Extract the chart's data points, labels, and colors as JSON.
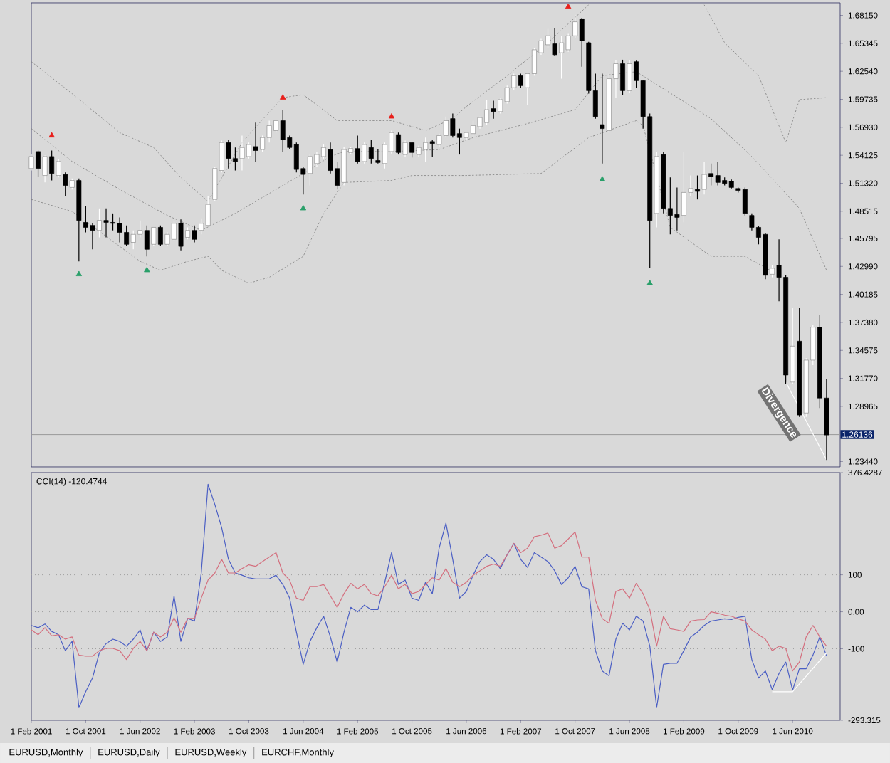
{
  "chart_data": [
    {
      "type": "candlestick",
      "x": [
        "2001-02",
        "2001-03",
        "2001-04",
        "2001-05",
        "2001-06",
        "2001-07",
        "2001-08",
        "2001-09",
        "2001-10",
        "2001-11",
        "2001-12",
        "2002-01",
        "2002-02",
        "2002-03",
        "2002-04",
        "2002-05",
        "2002-06",
        "2002-07",
        "2002-08",
        "2002-09",
        "2002-10",
        "2002-11",
        "2002-12",
        "2003-01",
        "2003-02",
        "2003-03",
        "2003-04",
        "2003-05",
        "2003-06",
        "2003-07",
        "2003-08",
        "2003-09",
        "2003-10",
        "2003-11",
        "2003-12",
        "2004-01",
        "2004-02",
        "2004-03",
        "2004-04",
        "2004-05",
        "2004-06",
        "2004-07",
        "2004-08",
        "2004-09",
        "2004-10",
        "2004-11",
        "2004-12",
        "2005-01",
        "2005-02",
        "2005-03",
        "2005-04",
        "2005-05",
        "2005-06",
        "2005-07",
        "2005-08",
        "2005-09",
        "2005-10",
        "2005-11",
        "2005-12",
        "2006-01",
        "2006-02",
        "2006-03",
        "2006-04",
        "2006-05",
        "2006-06",
        "2006-07",
        "2006-08",
        "2006-09",
        "2006-10",
        "2006-11",
        "2006-12",
        "2007-01",
        "2007-02",
        "2007-03",
        "2007-04",
        "2007-05",
        "2007-06",
        "2007-07",
        "2007-08",
        "2007-09",
        "2007-10",
        "2007-11",
        "2007-12",
        "2008-01",
        "2008-02",
        "2008-03",
        "2008-04",
        "2008-05",
        "2008-06",
        "2008-07",
        "2008-08",
        "2008-09",
        "2008-10",
        "2008-11",
        "2008-12",
        "2009-01",
        "2009-02",
        "2009-03",
        "2009-04",
        "2009-05",
        "2009-06",
        "2009-07",
        "2009-08",
        "2009-09",
        "2009-10",
        "2009-11",
        "2009-12",
        "2010-01",
        "2010-02",
        "2010-03",
        "2010-04",
        "2010-05",
        "2010-06",
        "2010-07",
        "2010-08",
        "2010-09",
        "2010-10",
        "2010-11"
      ],
      "ohlc": [
        [
          1.528,
          1.542,
          1.526,
          1.54
        ],
        [
          1.545,
          1.546,
          1.52,
          1.528
        ],
        [
          1.521,
          1.541,
          1.514,
          1.54
        ],
        [
          1.54,
          1.546,
          1.516,
          1.523
        ],
        [
          1.521,
          1.537,
          1.519,
          1.535
        ],
        [
          1.522,
          1.524,
          1.5,
          1.511
        ],
        [
          1.509,
          1.518,
          1.507,
          1.516
        ],
        [
          1.516,
          1.518,
          1.435,
          1.476
        ],
        [
          1.474,
          1.49,
          1.464,
          1.469
        ],
        [
          1.471,
          1.473,
          1.447,
          1.466
        ],
        [
          1.466,
          1.488,
          1.459,
          1.476
        ],
        [
          1.476,
          1.488,
          1.459,
          1.474
        ],
        [
          1.474,
          1.483,
          1.466,
          1.473
        ],
        [
          1.473,
          1.479,
          1.454,
          1.464
        ],
        [
          1.464,
          1.471,
          1.45,
          1.452
        ],
        [
          1.454,
          1.466,
          1.447,
          1.462
        ],
        [
          1.462,
          1.476,
          1.459,
          1.466
        ],
        [
          1.466,
          1.471,
          1.44,
          1.447
        ],
        [
          1.452,
          1.469,
          1.45,
          1.469
        ],
        [
          1.469,
          1.471,
          1.45,
          1.452
        ],
        [
          1.452,
          1.464,
          1.45,
          1.462
        ],
        [
          1.457,
          1.476,
          1.455,
          1.473
        ],
        [
          1.473,
          1.477,
          1.446,
          1.45
        ],
        [
          1.459,
          1.469,
          1.457,
          1.466
        ],
        [
          1.466,
          1.471,
          1.454,
          1.457
        ],
        [
          1.466,
          1.478,
          1.462,
          1.473
        ],
        [
          1.471,
          1.5,
          1.47,
          1.492
        ],
        [
          1.497,
          1.53,
          1.495,
          1.528
        ],
        [
          1.526,
          1.556,
          1.524,
          1.554
        ],
        [
          1.554,
          1.557,
          1.528,
          1.538
        ],
        [
          1.538,
          1.549,
          1.526,
          1.535
        ],
        [
          1.538,
          1.561,
          1.526,
          1.549
        ],
        [
          1.54,
          1.554,
          1.538,
          1.552
        ],
        [
          1.55,
          1.574,
          1.535,
          1.546
        ],
        [
          1.547,
          1.561,
          1.545,
          1.559
        ],
        [
          1.559,
          1.576,
          1.554,
          1.571
        ],
        [
          1.566,
          1.576,
          1.564,
          1.576
        ],
        [
          1.576,
          1.587,
          1.545,
          1.557
        ],
        [
          1.559,
          1.561,
          1.547,
          1.549
        ],
        [
          1.552,
          1.554,
          1.524,
          1.527
        ],
        [
          1.528,
          1.53,
          1.502,
          1.522
        ],
        [
          1.523,
          1.542,
          1.511,
          1.54
        ],
        [
          1.533,
          1.545,
          1.53,
          1.542
        ],
        [
          1.54,
          1.552,
          1.538,
          1.549
        ],
        [
          1.547,
          1.554,
          1.523,
          1.526
        ],
        [
          1.528,
          1.535,
          1.507,
          1.511
        ],
        [
          1.514,
          1.55,
          1.511,
          1.547
        ],
        [
          1.544,
          1.55,
          1.542,
          1.548
        ],
        [
          1.548,
          1.561,
          1.533,
          1.535
        ],
        [
          1.535,
          1.554,
          1.533,
          1.552
        ],
        [
          1.549,
          1.557,
          1.533,
          1.538
        ],
        [
          1.536,
          1.547,
          1.533,
          1.534
        ],
        [
          1.533,
          1.554,
          1.528,
          1.552
        ],
        [
          1.545,
          1.566,
          1.543,
          1.564
        ],
        [
          1.562,
          1.564,
          1.542,
          1.544
        ],
        [
          1.542,
          1.556,
          1.54,
          1.554
        ],
        [
          1.554,
          1.555,
          1.539,
          1.544
        ],
        [
          1.542,
          1.551,
          1.54,
          1.549
        ],
        [
          1.547,
          1.559,
          1.535,
          1.554
        ],
        [
          1.555,
          1.557,
          1.54,
          1.553
        ],
        [
          1.552,
          1.563,
          1.55,
          1.561
        ],
        [
          1.561,
          1.58,
          1.559,
          1.576
        ],
        [
          1.578,
          1.583,
          1.559,
          1.561
        ],
        [
          1.563,
          1.568,
          1.542,
          1.559
        ],
        [
          1.559,
          1.564,
          1.557,
          1.564
        ],
        [
          1.563,
          1.576,
          1.559,
          1.571
        ],
        [
          1.57,
          1.58,
          1.568,
          1.579
        ],
        [
          1.574,
          1.597,
          1.572,
          1.587
        ],
        [
          1.588,
          1.596,
          1.578,
          1.585
        ],
        [
          1.585,
          1.598,
          1.583,
          1.597
        ],
        [
          1.595,
          1.611,
          1.593,
          1.609
        ],
        [
          1.609,
          1.623,
          1.607,
          1.621
        ],
        [
          1.621,
          1.623,
          1.609,
          1.611
        ],
        [
          1.609,
          1.624,
          1.592,
          1.623
        ],
        [
          1.623,
          1.649,
          1.621,
          1.647
        ],
        [
          1.644,
          1.658,
          1.642,
          1.656
        ],
        [
          1.652,
          1.668,
          1.649,
          1.661
        ],
        [
          1.653,
          1.669,
          1.641,
          1.642
        ],
        [
          1.644,
          1.661,
          1.618,
          1.654
        ],
        [
          1.647,
          1.663,
          1.645,
          1.661
        ],
        [
          1.661,
          1.682,
          1.659,
          1.675
        ],
        [
          1.678,
          1.679,
          1.63,
          1.656
        ],
        [
          1.654,
          1.655,
          1.603,
          1.606
        ],
        [
          1.606,
          1.623,
          1.578,
          1.58
        ],
        [
          1.572,
          1.623,
          1.533,
          1.568
        ],
        [
          1.566,
          1.623,
          1.564,
          1.618
        ],
        [
          1.618,
          1.637,
          1.599,
          1.633
        ],
        [
          1.633,
          1.637,
          1.602,
          1.606
        ],
        [
          1.606,
          1.637,
          1.604,
          1.633
        ],
        [
          1.635,
          1.636,
          1.609,
          1.616
        ],
        [
          1.616,
          1.616,
          1.568,
          1.58
        ],
        [
          1.58,
          1.583,
          1.428,
          1.476
        ],
        [
          1.483,
          1.545,
          1.469,
          1.54
        ],
        [
          1.542,
          1.545,
          1.483,
          1.488
        ],
        [
          1.488,
          1.519,
          1.462,
          1.481
        ],
        [
          1.482,
          1.509,
          1.466,
          1.479
        ],
        [
          1.481,
          1.545,
          1.474,
          1.504
        ],
        [
          1.504,
          1.521,
          1.5,
          1.508
        ],
        [
          1.507,
          1.521,
          1.497,
          1.505
        ],
        [
          1.507,
          1.535,
          1.502,
          1.522
        ],
        [
          1.523,
          1.533,
          1.511,
          1.52
        ],
        [
          1.521,
          1.535,
          1.511,
          1.514
        ],
        [
          1.516,
          1.519,
          1.511,
          1.513
        ],
        [
          1.515,
          1.517,
          1.508,
          1.509
        ],
        [
          1.508,
          1.509,
          1.504,
          1.506
        ],
        [
          1.507,
          1.509,
          1.481,
          1.483
        ],
        [
          1.481,
          1.483,
          1.466,
          1.469
        ],
        [
          1.469,
          1.47,
          1.452,
          1.459
        ],
        [
          1.462,
          1.463,
          1.417,
          1.421
        ],
        [
          1.422,
          1.431,
          1.419,
          1.428
        ],
        [
          1.431,
          1.457,
          1.395,
          1.419
        ],
        [
          1.419,
          1.421,
          1.312,
          1.321
        ],
        [
          1.314,
          1.388,
          1.312,
          1.35
        ],
        [
          1.355,
          1.388,
          1.279,
          1.281
        ],
        [
          1.283,
          1.338,
          1.279,
          1.336
        ],
        [
          1.336,
          1.371,
          1.331,
          1.369
        ],
        [
          1.369,
          1.381,
          1.288,
          1.298
        ],
        [
          1.298,
          1.317,
          1.236,
          1.261
        ]
      ],
      "xlim": [
        "2001-02",
        "2011-01"
      ],
      "ylim": [
        1.229,
        1.694
      ],
      "yticks": [
        {
          "value": 1.6815,
          "label": "1.68150"
        },
        1.65345,
        {
          "value": 1.6254,
          "label": "1.62540"
        },
        1.59735,
        {
          "value": 1.5693,
          "label": "1.56930"
        },
        1.54125,
        {
          "value": 1.5132,
          "label": "1.51320"
        },
        1.48515,
        1.45795,
        {
          "value": 1.4299,
          "label": "1.42990"
        },
        1.40185,
        {
          "value": 1.3738,
          "label": "1.37380"
        },
        1.34575,
        {
          "value": 1.3177,
          "label": "1.31770"
        },
        1.28965,
        {
          "value": 1.2344,
          "label": "1.23440"
        }
      ],
      "tick_labels": "y",
      "series": [
        {
          "type": "line",
          "color": "#7f7f7f",
          "line_style": "dashed",
          "x": [
            "2001-02",
            "2001-08",
            "2002-03",
            "2002-08",
            "2002-12",
            "2003-04",
            "2003-05",
            "2003-09",
            "2004-02",
            "2004-03",
            "2004-06",
            "2004-11",
            "2005-07",
            "2005-12",
            "2006-04",
            "2006-06",
            "2006-12",
            "2007-06",
            "2007-12",
            "2008-08",
            "2009-05",
            "2009-08",
            "2010-01",
            "2010-05",
            "2010-07",
            "2010-11"
          ],
          "values": [
            1.635,
            1.603,
            1.564,
            1.549,
            1.519,
            1.495,
            1.507,
            1.554,
            1.592,
            1.599,
            1.602,
            1.576,
            1.576,
            1.566,
            1.578,
            1.59,
            1.621,
            1.654,
            1.692,
            null,
            1.692,
            1.654,
            1.621,
            1.554,
            1.597,
            1.599
          ]
        },
        {
          "type": "line",
          "color": "#7f7f7f",
          "line_style": "dashed",
          "x": [
            "2001-02",
            "2001-08",
            "2002-03",
            "2002-10",
            "2003-03",
            "2003-08",
            "2004-03",
            "2004-06",
            "2004-10",
            "2004-12",
            "2005-07",
            "2006-02",
            "2006-07",
            "2007-03",
            "2007-10",
            "2008-02",
            "2008-07",
            "2009-06",
            "2009-12",
            "2010-07",
            "2010-11"
          ],
          "values": [
            1.568,
            1.535,
            1.507,
            1.481,
            1.466,
            1.483,
            1.511,
            1.523,
            1.54,
            1.545,
            1.545,
            1.547,
            1.559,
            1.573,
            1.587,
            1.621,
            1.625,
            1.578,
            1.54,
            1.488,
            1.426
          ]
        },
        {
          "type": "line",
          "color": "#7f7f7f",
          "line_style": "dashed",
          "x": [
            "2001-02",
            "2001-08",
            "2002-06",
            "2002-09",
            "2003-01",
            "2003-04",
            "2003-06",
            "2003-10",
            "2004-01",
            "2004-06",
            "2004-09",
            "2004-12",
            "2005-07",
            "2005-10",
            "2006-06",
            "2007-05",
            "2007-12",
            "2008-07",
            "2008-08",
            "2008-12",
            "2009-06",
            "2009-11",
            "2010-04"
          ],
          "values": [
            1.497,
            1.485,
            1.435,
            1.426,
            1.435,
            1.44,
            1.426,
            1.413,
            1.419,
            1.44,
            1.483,
            1.514,
            1.516,
            1.521,
            1.521,
            1.523,
            1.559,
            1.576,
            1.571,
            1.469,
            1.44,
            1.44,
            1.421
          ]
        },
        {
          "type": "scatter",
          "color": "#e8201c",
          "marker": "triangle",
          "x": [
            "2001-05",
            "2004-03",
            "2005-07",
            "2007-09"
          ],
          "values": [
            1.561,
            1.599,
            1.58,
            1.69
          ]
        },
        {
          "type": "scatter",
          "color": "#2aa06a",
          "marker": "triangle",
          "x": [
            "2001-09",
            "2002-07",
            "2004-06",
            "2008-02",
            "2008-09"
          ],
          "values": [
            1.422,
            1.426,
            1.488,
            1.517,
            1.413
          ]
        },
        {
          "type": "line",
          "color": "#ffffff",
          "x": [
            "2010-05",
            "2010-11"
          ],
          "values": [
            1.314,
            1.236
          ]
        }
      ],
      "ref_lines": [
        {
          "axis": "y",
          "value": 1.26136,
          "label": "1.26136",
          "color": "#9a9a9a",
          "line_style": "solid"
        }
      ],
      "annotations": [
        {
          "text": "Divergence",
          "x": "2010-04",
          "y": 1.283
        }
      ]
    },
    {
      "type": "line",
      "title": "CCI(14) -120.4744",
      "x": [
        "2001-02",
        "2001-03",
        "2001-04",
        "2001-05",
        "2001-06",
        "2001-07",
        "2001-08",
        "2001-09",
        "2001-10",
        "2001-11",
        "2001-12",
        "2002-01",
        "2002-02",
        "2002-03",
        "2002-04",
        "2002-05",
        "2002-06",
        "2002-07",
        "2002-08",
        "2002-09",
        "2002-10",
        "2002-11",
        "2002-12",
        "2003-01",
        "2003-02",
        "2003-03",
        "2003-04",
        "2003-05",
        "2003-06",
        "2003-07",
        "2003-08",
        "2003-09",
        "2003-10",
        "2003-11",
        "2003-12",
        "2004-01",
        "2004-02",
        "2004-03",
        "2004-04",
        "2004-05",
        "2004-06",
        "2004-07",
        "2004-08",
        "2004-09",
        "2004-10",
        "2004-11",
        "2004-12",
        "2005-01",
        "2005-02",
        "2005-03",
        "2005-04",
        "2005-05",
        "2005-06",
        "2005-07",
        "2005-08",
        "2005-09",
        "2005-10",
        "2005-11",
        "2005-12",
        "2006-01",
        "2006-02",
        "2006-03",
        "2006-04",
        "2006-05",
        "2006-06",
        "2006-07",
        "2006-08",
        "2006-09",
        "2006-10",
        "2006-11",
        "2006-12",
        "2007-01",
        "2007-02",
        "2007-03",
        "2007-04",
        "2007-05",
        "2007-06",
        "2007-07",
        "2007-08",
        "2007-09",
        "2007-10",
        "2007-11",
        "2007-12",
        "2008-01",
        "2008-02",
        "2008-03",
        "2008-04",
        "2008-05",
        "2008-06",
        "2008-07",
        "2008-08",
        "2008-09",
        "2008-10",
        "2008-11",
        "2008-12",
        "2009-01",
        "2009-02",
        "2009-03",
        "2009-04",
        "2009-05",
        "2009-06",
        "2009-07",
        "2009-08",
        "2009-09",
        "2009-10",
        "2009-11",
        "2009-12",
        "2010-01",
        "2010-02",
        "2010-03",
        "2010-04",
        "2010-05",
        "2010-06",
        "2010-07",
        "2010-08",
        "2010-09",
        "2010-10",
        "2010-11"
      ],
      "xlim": [
        "2001-02",
        "2011-01"
      ],
      "xticks": [
        {
          "value": "2001-02",
          "label": "1 Feb 2001"
        },
        {
          "value": "2001-10",
          "label": "1 Oct 2001"
        },
        {
          "value": "2002-06",
          "label": "1 Jun 2002"
        },
        {
          "value": "2003-02",
          "label": "1 Feb 2003"
        },
        {
          "value": "2003-10",
          "label": "1 Oct 2003"
        },
        {
          "value": "2004-06",
          "label": "1 Jun 2004"
        },
        {
          "value": "2005-02",
          "label": "1 Feb 2005"
        },
        {
          "value": "2005-10",
          "label": "1 Oct 2005"
        },
        {
          "value": "2006-06",
          "label": "1 Jun 2006"
        },
        {
          "value": "2007-02",
          "label": "1 Feb 2007"
        },
        {
          "value": "2007-10",
          "label": "1 Oct 2007"
        },
        {
          "value": "2008-06",
          "label": "1 Jun 2008"
        },
        {
          "value": "2009-02",
          "label": "1 Feb 2009"
        },
        {
          "value": "2009-10",
          "label": "1 Oct 2009"
        },
        {
          "value": "2010-06",
          "label": "1 Jun 2010"
        }
      ],
      "ylim": [
        -293.315,
        376.4287
      ],
      "yticks": [
        376.4287,
        100,
        {
          "value": 0,
          "label": "0.00"
        },
        -100,
        -293.315
      ],
      "series": [
        {
          "color": "#4b5fc4",
          "values": [
            -37,
            -43,
            -33,
            -53,
            -62,
            -105,
            -80,
            -259,
            -216,
            -179,
            -111,
            -86,
            -74,
            -80,
            -93,
            -74,
            -49,
            -105,
            -55,
            -80,
            -68,
            43,
            -80,
            -18,
            -25,
            105,
            345,
            290,
            228,
            142,
            105,
            99,
            92,
            89,
            89,
            89,
            99,
            74,
            37,
            -55,
            -142,
            -80,
            -43,
            -12,
            -68,
            -136,
            -55,
            12,
            0,
            18,
            6,
            6,
            80,
            160,
            74,
            86,
            37,
            31,
            80,
            49,
            172,
            240,
            142,
            37,
            55,
            99,
            136,
            154,
            142,
            117,
            154,
            185,
            142,
            120,
            160,
            148,
            136,
            111,
            74,
            92,
            123,
            68,
            62,
            -105,
            -160,
            -173,
            -74,
            -31,
            -49,
            -12,
            -25,
            -93,
            -259,
            -142,
            -139,
            -139,
            -105,
            -68,
            -55,
            -37,
            -25,
            -22,
            -19,
            -21,
            -15,
            -12,
            -129,
            -179,
            -160,
            -210,
            -167,
            -136,
            -212,
            -154,
            -154,
            -117,
            -68,
            -120
          ]
        },
        {
          "color": "#d4707f",
          "values": [
            -49,
            -62,
            -43,
            -65,
            -62,
            -74,
            -68,
            -117,
            -120,
            -120,
            -105,
            -99,
            -99,
            -105,
            -129,
            -99,
            -80,
            -105,
            -55,
            -68,
            -55,
            -16,
            -55,
            -18,
            -18,
            37,
            86,
            105,
            142,
            105,
            105,
            117,
            127,
            123,
            136,
            148,
            160,
            105,
            86,
            37,
            31,
            68,
            68,
            74,
            43,
            12,
            49,
            77,
            62,
            74,
            49,
            43,
            68,
            99,
            62,
            74,
            49,
            55,
            74,
            92,
            86,
            117,
            80,
            68,
            80,
            99,
            111,
            123,
            129,
            123,
            154,
            185,
            160,
            172,
            203,
            207,
            213,
            172,
            179,
            197,
            216,
            148,
            148,
            31,
            -18,
            -31,
            55,
            62,
            37,
            77,
            49,
            6,
            -93,
            -12,
            -46,
            -49,
            -53,
            -25,
            -22,
            -21,
            0,
            -4,
            -9,
            -12,
            -19,
            -25,
            -49,
            -62,
            -74,
            -105,
            -93,
            -99,
            -160,
            -136,
            -68,
            -37,
            -68,
            -93
          ]
        },
        {
          "color": "#ffffff",
          "x": [
            "2010-03",
            "2010-06",
            "2010-11"
          ],
          "values": [
            -216,
            -216,
            -111
          ]
        }
      ],
      "ref_lines": [
        {
          "axis": "y",
          "value": 100,
          "color": "#a0a0a0",
          "line_style": "dotted"
        },
        {
          "axis": "y",
          "value": 0,
          "color": "#a0a0a0",
          "line_style": "dotted"
        },
        {
          "axis": "y",
          "value": -100,
          "color": "#a0a0a0",
          "line_style": "dotted"
        }
      ],
      "annotations": [
        "EURUSD,Monthly",
        "EURUSD,Daily",
        "EURUSD,Weekly",
        "EURCHF,Monthly"
      ]
    }
  ]
}
